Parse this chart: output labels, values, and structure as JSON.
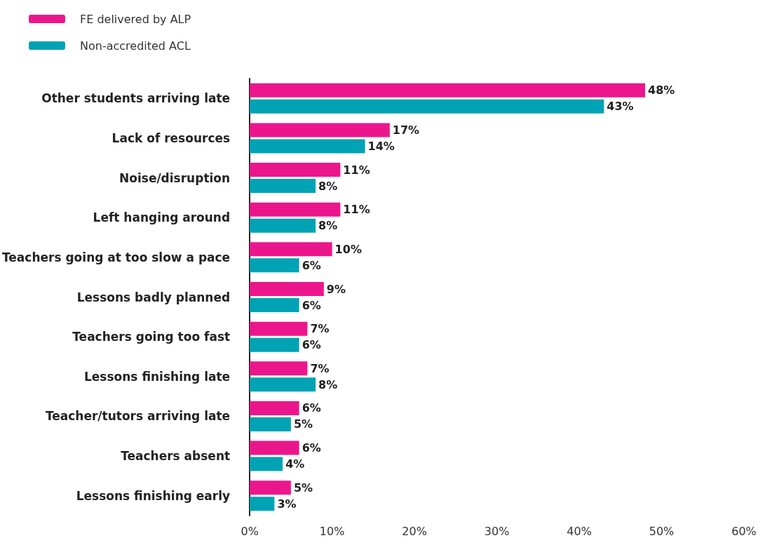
{
  "chart_data": {
    "type": "bar",
    "orientation": "horizontal",
    "categories": [
      "Other students arriving late",
      "Lack of resources",
      "Noise/disruption",
      "Left hanging around",
      "Teachers going at too slow a pace",
      "Lessons badly planned",
      "Teachers going too fast",
      "Lessons finishing late",
      "Teacher/tutors arriving late",
      "Teachers absent",
      "Lessons finishing early"
    ],
    "series": [
      {
        "name": "FE delivered by ALP",
        "color": "#ec168c",
        "values": [
          48,
          17,
          11,
          11,
          10,
          9,
          7,
          7,
          6,
          6,
          5
        ],
        "value_labels": [
          "48%",
          "17%",
          "11%",
          "11%",
          "10%",
          "9%",
          "7%",
          "7%",
          "6%",
          "6%",
          "5%"
        ]
      },
      {
        "name": "Non-accredited ACL",
        "color": "#00a3b4",
        "values": [
          43,
          14,
          8,
          8,
          6,
          6,
          6,
          8,
          5,
          4,
          3
        ],
        "value_labels": [
          "43%",
          "14%",
          "8%",
          "8%",
          "6%",
          "6%",
          "6%",
          "8%",
          "5%",
          "4%",
          "3%"
        ]
      }
    ],
    "xlim": [
      0,
      60
    ],
    "xticks": [
      {
        "value": 0,
        "label": "0%"
      },
      {
        "value": 10,
        "label": "10%"
      },
      {
        "value": 20,
        "label": "20%"
      },
      {
        "value": 30,
        "label": "30%"
      },
      {
        "value": 40,
        "label": "40%"
      },
      {
        "value": 50,
        "label": "50%"
      },
      {
        "value": 60,
        "label": "60%"
      }
    ],
    "grid": false,
    "legend": "top left"
  }
}
